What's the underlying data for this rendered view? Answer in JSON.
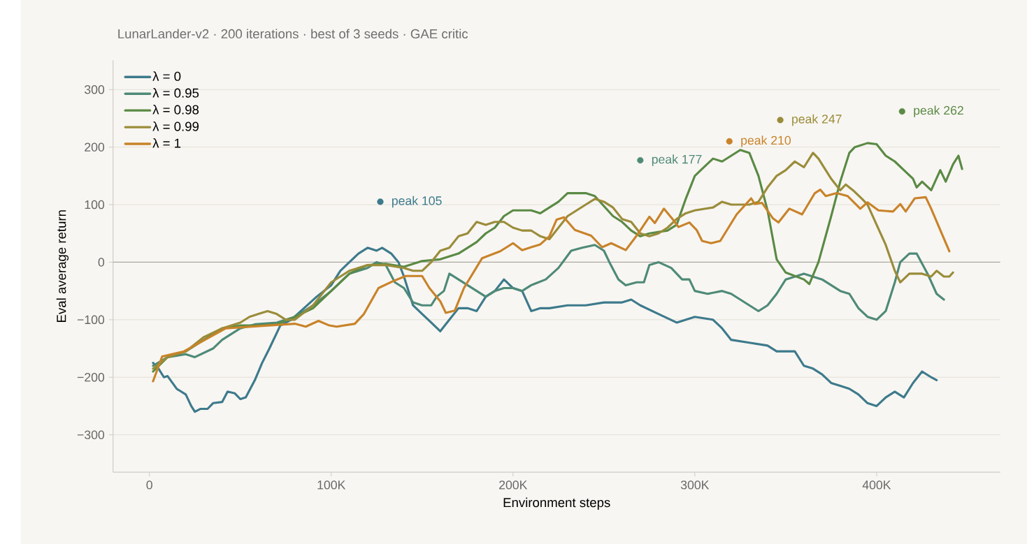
{
  "chart_data": {
    "type": "line",
    "title": "LunarLander-v2 · 200 iterations · best of 3 seeds · GAE critic",
    "xlabel": "Environment steps",
    "ylabel": "Eval average return",
    "xlim": [
      -20000,
      468000
    ],
    "ylim": [
      -365,
      351
    ],
    "xticks": [
      {
        "value": 0,
        "label": "0"
      },
      {
        "value": 100000,
        "label": "100K"
      },
      {
        "value": 200000,
        "label": "200K"
      },
      {
        "value": 300000,
        "label": "300K"
      },
      {
        "value": 400000,
        "label": "400K"
      }
    ],
    "yticks": [
      {
        "value": -300,
        "label": "−300"
      },
      {
        "value": -200,
        "label": "−200"
      },
      {
        "value": -100,
        "label": "−100"
      },
      0,
      100,
      200,
      300
    ],
    "grid": "y",
    "legend": "top left",
    "marker": "none",
    "line_style": "solid",
    "ref_lines": [
      {
        "axis": "y",
        "value": 0,
        "color": "#aaa69e"
      }
    ],
    "series": [
      {
        "name": "λ = 0",
        "color": "#3d7a8c",
        "x": [
          2000,
          5000,
          8000,
          10000,
          15000,
          20000,
          23000,
          25000,
          28000,
          32000,
          35000,
          40000,
          43000,
          47000,
          50000,
          53000,
          58000,
          62000,
          66000,
          72000,
          78000,
          85000,
          92000,
          100000,
          105000,
          110000,
          115000,
          120000,
          125000,
          128000,
          133000,
          137000,
          140000,
          145000,
          150000,
          155000,
          160000,
          165000,
          170000,
          175000,
          180000,
          185000,
          190000,
          195000,
          200000,
          205000,
          210000,
          215000,
          220000,
          230000,
          240000,
          250000,
          260000,
          265000,
          270000,
          280000,
          290000,
          300000,
          310000,
          315000,
          320000,
          330000,
          340000,
          345000,
          355000,
          360000,
          365000,
          370000,
          375000,
          380000,
          385000,
          390000,
          395000,
          400000,
          405000,
          410000,
          415000,
          420000,
          425000,
          430000,
          433000
        ],
        "values": [
          -175,
          -185,
          -200,
          -198,
          -220,
          -230,
          -250,
          -260,
          -255,
          -255,
          -245,
          -243,
          -225,
          -228,
          -238,
          -235,
          -205,
          -175,
          -150,
          -110,
          -100,
          -80,
          -60,
          -40,
          -15,
          0,
          15,
          25,
          20,
          25,
          15,
          0,
          -25,
          -75,
          -90,
          -105,
          -120,
          -100,
          -80,
          -80,
          -85,
          -60,
          -50,
          -30,
          -45,
          -50,
          -85,
          -80,
          -80,
          -75,
          -75,
          -70,
          -70,
          -65,
          -75,
          -90,
          -105,
          -95,
          -100,
          -115,
          -135,
          -140,
          -145,
          -155,
          -155,
          -180,
          -185,
          -195,
          -210,
          -215,
          -220,
          -230,
          -245,
          -250,
          -235,
          -225,
          -235,
          -210,
          -190,
          -200,
          -205
        ]
      },
      {
        "name": "λ = 0.95",
        "color": "#4e8a78",
        "x": [
          2000,
          10000,
          20000,
          25000,
          35000,
          40000,
          50000,
          58000,
          70000,
          80000,
          90000,
          100000,
          110000,
          120000,
          125000,
          130000,
          135000,
          140000,
          145000,
          150000,
          155000,
          158000,
          162000,
          165000,
          170000,
          175000,
          180000,
          185000,
          190000,
          195000,
          200000,
          205000,
          210000,
          218000,
          225000,
          232000,
          238000,
          245000,
          250000,
          253000,
          258000,
          262000,
          268000,
          272000,
          275000,
          280000,
          287000,
          293000,
          297000,
          300000,
          307000,
          315000,
          320000,
          330000,
          335000,
          340000,
          345000,
          350000,
          360000,
          370000,
          375000,
          380000,
          385000,
          390000,
          395000,
          400000,
          405000,
          410000,
          413000,
          418000,
          422000,
          428000,
          433000,
          437000
        ],
        "values": [
          -180,
          -165,
          -160,
          -165,
          -150,
          -135,
          -115,
          -108,
          -105,
          -95,
          -75,
          -50,
          -20,
          -10,
          0,
          -5,
          -35,
          -45,
          -70,
          -75,
          -75,
          -60,
          -50,
          -20,
          -30,
          -40,
          -50,
          -60,
          -50,
          -45,
          -45,
          -50,
          -40,
          -30,
          -10,
          20,
          25,
          30,
          20,
          0,
          -30,
          -40,
          -35,
          -35,
          -5,
          0,
          -10,
          -30,
          -30,
          -50,
          -55,
          -50,
          -55,
          -75,
          -85,
          -75,
          -55,
          -30,
          -20,
          -30,
          -40,
          -50,
          -55,
          -80,
          -95,
          -100,
          -85,
          -35,
          0,
          15,
          15,
          -20,
          -55,
          -65
        ]
      },
      {
        "name": "λ = 0.98",
        "color": "#5a8a45",
        "x": [
          2000,
          10000,
          20000,
          30000,
          40000,
          50000,
          60000,
          70000,
          80000,
          90000,
          100000,
          110000,
          120000,
          130000,
          140000,
          150000,
          160000,
          170000,
          180000,
          185000,
          190000,
          195000,
          200000,
          210000,
          215000,
          225000,
          230000,
          240000,
          245000,
          255000,
          260000,
          265000,
          270000,
          275000,
          285000,
          290000,
          295000,
          300000,
          305000,
          310000,
          315000,
          320000,
          325000,
          330000,
          335000,
          340000,
          345000,
          350000,
          360000,
          363000,
          368000,
          375000,
          380000,
          385000,
          388000,
          395000,
          400000,
          405000,
          410000,
          415000,
          420000,
          422000,
          425000,
          430000,
          435000,
          438000,
          442000,
          445000,
          447000
        ],
        "values": [
          -190,
          -165,
          -155,
          -135,
          -115,
          -110,
          -110,
          -108,
          -95,
          -80,
          -50,
          -20,
          -5,
          -3,
          -8,
          2,
          5,
          15,
          35,
          50,
          60,
          80,
          90,
          90,
          85,
          105,
          120,
          120,
          115,
          80,
          70,
          55,
          45,
          50,
          55,
          65,
          110,
          150,
          165,
          180,
          175,
          185,
          195,
          190,
          150,
          90,
          5,
          -18,
          -30,
          -38,
          0,
          80,
          140,
          190,
          200,
          207,
          205,
          185,
          175,
          160,
          145,
          130,
          140,
          125,
          160,
          140,
          170,
          185,
          162
        ]
      },
      {
        "name": "λ = 0.99",
        "color": "#9a8c3a",
        "x": [
          2000,
          10000,
          20000,
          30000,
          40000,
          50000,
          55000,
          60000,
          65000,
          70000,
          75000,
          80000,
          90000,
          100000,
          110000,
          120000,
          130000,
          140000,
          145000,
          150000,
          155000,
          160000,
          165000,
          170000,
          175000,
          180000,
          185000,
          190000,
          195000,
          200000,
          205000,
          210000,
          215000,
          220000,
          225000,
          230000,
          235000,
          240000,
          245000,
          250000,
          255000,
          260000,
          265000,
          270000,
          275000,
          280000,
          285000,
          290000,
          295000,
          300000,
          310000,
          315000,
          320000,
          325000,
          330000,
          335000,
          340000,
          345000,
          350000,
          355000,
          360000,
          365000,
          368000,
          372000,
          375000,
          380000,
          383000,
          387000,
          392000,
          395000,
          400000,
          405000,
          410000,
          413000,
          418000,
          425000,
          430000,
          433000,
          437000,
          440000,
          442000
        ],
        "values": [
          -185,
          -165,
          -155,
          -130,
          -115,
          -105,
          -95,
          -90,
          -85,
          -90,
          -100,
          -100,
          -75,
          -35,
          -15,
          -5,
          -5,
          -10,
          -15,
          -15,
          0,
          20,
          25,
          45,
          50,
          70,
          65,
          70,
          70,
          60,
          55,
          55,
          45,
          40,
          60,
          80,
          90,
          100,
          110,
          105,
          95,
          75,
          70,
          50,
          45,
          50,
          60,
          75,
          85,
          90,
          95,
          105,
          100,
          100,
          100,
          105,
          130,
          150,
          160,
          175,
          165,
          190,
          180,
          160,
          145,
          125,
          135,
          125,
          110,
          100,
          65,
          30,
          -15,
          -35,
          -20,
          -20,
          -25,
          -15,
          -25,
          -25,
          -18
        ]
      },
      {
        "name": "λ = 1",
        "color": "#c8832a",
        "x": [
          2000,
          7000,
          19000,
          42000,
          65000,
          80000,
          86000,
          93000,
          99000,
          103000,
          113000,
          118000,
          126000,
          134000,
          141000,
          150000,
          154000,
          160000,
          163000,
          168000,
          173000,
          183000,
          193000,
          200000,
          205000,
          215000,
          220000,
          224000,
          228000,
          234000,
          243000,
          249000,
          254000,
          262000,
          268000,
          275000,
          278000,
          283000,
          288000,
          291000,
          297000,
          301000,
          304000,
          309000,
          314000,
          323000,
          331000,
          333000,
          337000,
          343000,
          346000,
          352000,
          359000,
          366000,
          369000,
          372000,
          378000,
          384000,
          391000,
          395000,
          401000,
          409000,
          413000,
          416000,
          421000,
          427000,
          430000,
          440000
        ],
        "values": [
          -207,
          -164,
          -155,
          -115,
          -110,
          -107,
          -112,
          -102,
          -110,
          -112,
          -107,
          -90,
          -45,
          -33,
          -24,
          -24,
          -45,
          -68,
          -88,
          -84,
          -45,
          7,
          19,
          33,
          21,
          31,
          45,
          74,
          78,
          56,
          46,
          26,
          33,
          21,
          46,
          79,
          68,
          93,
          74,
          61,
          69,
          56,
          37,
          33,
          37,
          83,
          111,
          101,
          103,
          76,
          69,
          93,
          83,
          120,
          126,
          115,
          120,
          115,
          93,
          104,
          90,
          88,
          101,
          88,
          111,
          113,
          93,
          19
        ]
      }
    ],
    "annotations": [
      {
        "text": "peak 105",
        "x": 127000,
        "y": 105
      },
      {
        "text": "peak 177",
        "x": 270000,
        "y": 177
      },
      {
        "text": "peak 262",
        "x": 414000,
        "y": 262
      },
      {
        "text": "peak 247",
        "x": 347000,
        "y": 247
      },
      {
        "text": "peak 210",
        "x": 319000,
        "y": 210
      }
    ]
  }
}
